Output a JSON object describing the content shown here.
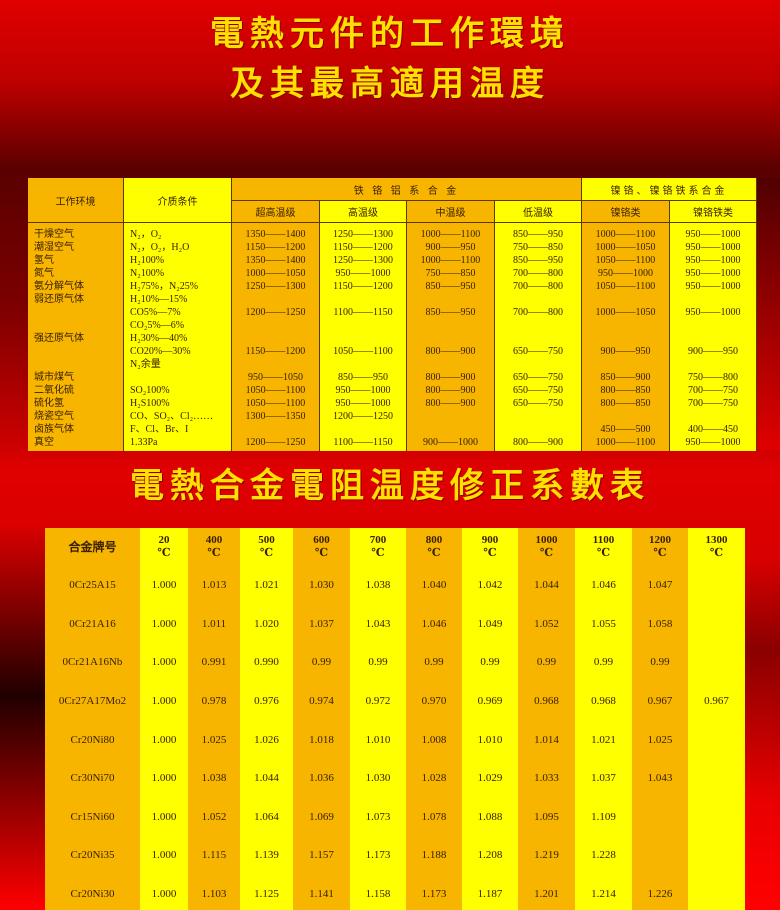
{
  "titles": {
    "top_line1": "電熱元件的工作環境",
    "top_line2": "及其最高適用温度",
    "bottom": "電熱合金電阻温度修正系數表"
  },
  "env_table": {
    "col_env": "工作环境",
    "col_medium": "介质条件",
    "group_fecral": "铁 铬 铝 系 合 金",
    "group_nicr": "镍铬、镍铬铁系合金",
    "subheaders": [
      "超高温级",
      "高温级",
      "中温级",
      "低温级",
      "镍铬类",
      "镍铬铁类"
    ],
    "rows": [
      [
        "干燥空气",
        "N₂，O₂",
        "1350——1400",
        "1250——1300",
        "1000——1100",
        "850——950",
        "1000——1100",
        "950——1000"
      ],
      [
        "潮湿空气",
        "N₂，O₂，H₂O",
        "1150——1200",
        "1150——1200",
        "900——950",
        "750——850",
        "1000——1050",
        "950——1000"
      ],
      [
        "氢气",
        "H₂100%",
        "1350——1400",
        "1250——1300",
        "1000——1100",
        "850——950",
        "1050——1100",
        "950——1000"
      ],
      [
        "氮气",
        "N₂100%",
        "1000——1050",
        "950——1000",
        "750——850",
        "700——800",
        "950——1000",
        "950——1000"
      ],
      [
        "氨分解气体",
        "H₂75%，N₂25%",
        "1250——1300",
        "1150——1200",
        "850——950",
        "700——800",
        "1050——1100",
        "950——1000"
      ],
      [
        "弱还原气体",
        "H₂10%—15%",
        "",
        "",
        "",
        "",
        "",
        ""
      ],
      [
        "",
        "CO5%—7%",
        "1200——1250",
        "1100——1150",
        "850——950",
        "700——800",
        "1000——1050",
        "950——1000"
      ],
      [
        "",
        "CO₂5%—6%",
        "",
        "",
        "",
        "",
        "",
        ""
      ],
      [
        "强还原气体",
        "H₂30%—40%",
        "",
        "",
        "",
        "",
        "",
        ""
      ],
      [
        "",
        "CO20%—30%",
        "1150——1200",
        "1050——1100",
        "800——900",
        "650——750",
        "900——950",
        "900——950"
      ],
      [
        "",
        "N₂余量",
        "",
        "",
        "",
        "",
        "",
        ""
      ],
      [
        "城市煤气",
        "",
        "950——1050",
        "850——950",
        "800——900",
        "650——750",
        "850——900",
        "750——800"
      ],
      [
        "二氧化硫",
        "SO₂100%",
        "1050——1100",
        "950——1000",
        "800——900",
        "650——750",
        "800——850",
        "700——750"
      ],
      [
        "硫化氢",
        "H₂S100%",
        "1050——1100",
        "950——1000",
        "800——900",
        "650——750",
        "800——850",
        "700——750"
      ],
      [
        "烧瓷空气",
        "CO、SO₂、Cl₂……",
        "1300——1350",
        "1200——1250",
        "",
        "",
        "",
        ""
      ],
      [
        "卤族气体",
        "F、Cl、Br、I",
        "",
        "",
        "",
        "",
        "450——500",
        "400——450"
      ],
      [
        "真空",
        "1.33Pa",
        "1200——1250",
        "1100——1150",
        "900——1000",
        "800——900",
        "1000——1100",
        "950——1000"
      ]
    ]
  },
  "coef_table": {
    "col_alloy": "合金牌号",
    "temps": [
      "20",
      "400",
      "500",
      "600",
      "700",
      "800",
      "900",
      "1000",
      "1100",
      "1200",
      "1300"
    ],
    "unit": "℃",
    "rows": [
      [
        "0Cr25A15",
        "1.000",
        "1.013",
        "1.021",
        "1.030",
        "1.038",
        "1.040",
        "1.042",
        "1.044",
        "1.046",
        "1.047",
        ""
      ],
      [
        "0Cr21A16",
        "1.000",
        "1.011",
        "1.020",
        "1.037",
        "1.043",
        "1.046",
        "1.049",
        "1.052",
        "1.055",
        "1.058",
        ""
      ],
      [
        "0Cr21A16Nb",
        "1.000",
        "0.991",
        "0.990",
        "0.99",
        "0.99",
        "0.99",
        "0.99",
        "0.99",
        "0.99",
        "0.99",
        ""
      ],
      [
        "0Cr27A17Mo2",
        "1.000",
        "0.978",
        "0.976",
        "0.974",
        "0.972",
        "0.970",
        "0.969",
        "0.968",
        "0.968",
        "0.967",
        "0.967"
      ],
      [
        "Cr20Ni80",
        "1.000",
        "1.025",
        "1.026",
        "1.018",
        "1.010",
        "1.008",
        "1.010",
        "1.014",
        "1.021",
        "1.025",
        ""
      ],
      [
        "Cr30Ni70",
        "1.000",
        "1.038",
        "1.044",
        "1.036",
        "1.030",
        "1.028",
        "1.029",
        "1.033",
        "1.037",
        "1.043",
        ""
      ],
      [
        "Cr15Ni60",
        "1.000",
        "1.052",
        "1.064",
        "1.069",
        "1.073",
        "1.078",
        "1.088",
        "1.095",
        "1.109",
        "",
        ""
      ],
      [
        "Cr20Ni35",
        "1.000",
        "1.115",
        "1.139",
        "1.157",
        "1.173",
        "1.188",
        "1.208",
        "1.219",
        "1.228",
        "",
        ""
      ],
      [
        "Cr20Ni30",
        "1.000",
        "1.103",
        "1.125",
        "1.141",
        "1.158",
        "1.173",
        "1.187",
        "1.201",
        "1.214",
        "1.226",
        ""
      ]
    ]
  },
  "colors": {
    "orange": "#f7b500",
    "yellow": "#ffff00",
    "title": "#ffe000",
    "background": "#e00000"
  }
}
